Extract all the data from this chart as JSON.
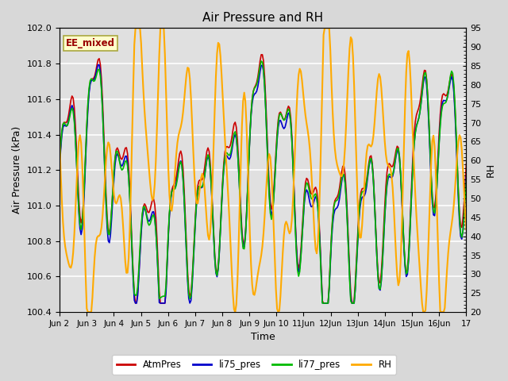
{
  "title": "Air Pressure and RH",
  "xlabel": "Time",
  "ylabel_left": "Air Pressure (kPa)",
  "ylabel_right": "RH",
  "ylim_left": [
    100.4,
    102.0
  ],
  "ylim_right": [
    20,
    95
  ],
  "yticks_left": [
    100.4,
    100.6,
    100.8,
    101.0,
    101.2,
    101.4,
    101.6,
    101.8,
    102.0
  ],
  "yticks_right": [
    20,
    25,
    30,
    35,
    40,
    45,
    50,
    55,
    60,
    65,
    70,
    75,
    80,
    85,
    90,
    95
  ],
  "x_tick_labels": [
    "Jun 2",
    "Jun 3",
    "Jun 4",
    "Jun 5",
    "Jun 6",
    "Jun 7",
    "Jun 8",
    "Jun 9",
    "Jun 10",
    "11Jun",
    "12Jun",
    "13Jun",
    "14Jun",
    "15Jun",
    "16Jun",
    "17"
  ],
  "annotation_text": "EE_mixed",
  "annotation_bg": "#ffffcc",
  "annotation_border": "#aaa840",
  "annotation_text_color": "#990000",
  "line_colors": {
    "AtmPres": "#cc0000",
    "li75_pres": "#0000cc",
    "li77_pres": "#00bb00",
    "RH": "#ffaa00"
  },
  "line_widths": {
    "AtmPres": 1.2,
    "li75_pres": 1.2,
    "li77_pres": 1.2,
    "RH": 1.5
  },
  "fig_bg": "#d8d8d8",
  "plot_bg": "#e0e0e0",
  "grid_color": "#ffffff",
  "figsize": [
    6.4,
    4.8
  ],
  "dpi": 100
}
